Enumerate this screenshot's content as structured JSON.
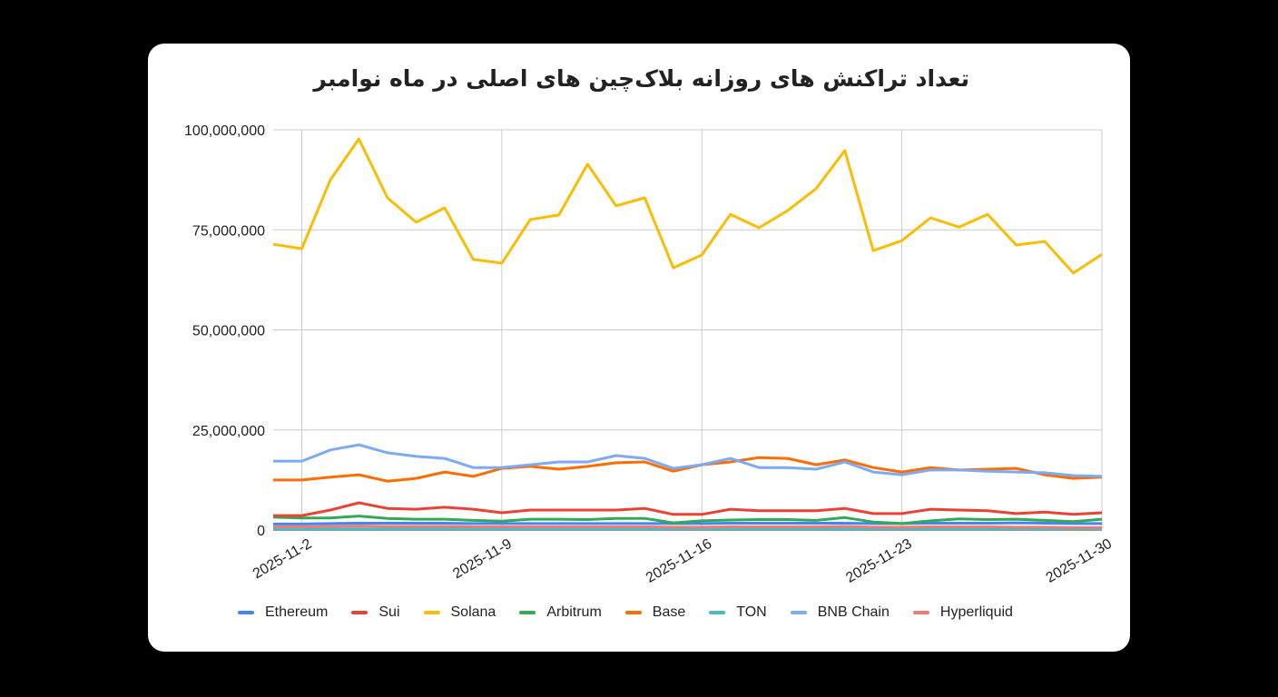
{
  "chart_data": {
    "type": "line",
    "title": "تعداد تراکنش های روزانه بلاک‌چین های اصلی در ماه نوامبر",
    "xlabel": "",
    "ylabel": "",
    "x": [
      "2025-11-1",
      "2025-11-2",
      "2025-11-3",
      "2025-11-4",
      "2025-11-5",
      "2025-11-6",
      "2025-11-7",
      "2025-11-8",
      "2025-11-9",
      "2025-11-10",
      "2025-11-11",
      "2025-11-12",
      "2025-11-13",
      "2025-11-14",
      "2025-11-15",
      "2025-11-16",
      "2025-11-17",
      "2025-11-18",
      "2025-11-19",
      "2025-11-20",
      "2025-11-21",
      "2025-11-22",
      "2025-11-23",
      "2025-11-24",
      "2025-11-25",
      "2025-11-26",
      "2025-11-27",
      "2025-11-28",
      "2025-11-29",
      "2025-11-30"
    ],
    "x_tick_labels": [
      "2025-11-2",
      "2025-11-9",
      "2025-11-16",
      "2025-11-23",
      "2025-11-30"
    ],
    "y_tick_labels": [
      "0",
      "25,000,000",
      "50,000,000",
      "75,000,000",
      "100,000,000"
    ],
    "ylim": [
      0,
      100000000
    ],
    "grid": true,
    "legend_position": "bottom",
    "series": [
      {
        "name": "Ethereum",
        "color": "#4285f4",
        "values": [
          1.5,
          1.5,
          1.6,
          1.7,
          1.7,
          1.7,
          1.7,
          1.6,
          1.6,
          1.6,
          1.6,
          1.6,
          1.6,
          1.6,
          1.6,
          1.6,
          1.7,
          1.7,
          1.7,
          1.7,
          1.7,
          1.6,
          1.6,
          1.7,
          1.7,
          1.7,
          1.8,
          1.7,
          1.6,
          1.6
        ]
      },
      {
        "name": "Sui",
        "color": "#ea4335",
        "values": [
          3.6,
          3.6,
          5.0,
          6.8,
          5.4,
          5.2,
          5.7,
          5.2,
          4.3,
          5.0,
          5.0,
          5.0,
          5.0,
          5.4,
          3.9,
          3.9,
          5.2,
          4.8,
          4.8,
          4.8,
          5.4,
          4.1,
          4.1,
          5.2,
          5.0,
          4.8,
          4.1,
          4.5,
          3.9,
          4.3
        ]
      },
      {
        "name": "Solana",
        "color": "#fbbc04",
        "values": [
          71.4,
          70.3,
          87.5,
          97.7,
          83.0,
          76.9,
          80.5,
          67.6,
          66.7,
          77.6,
          78.7,
          91.4,
          81.0,
          83.0,
          65.5,
          68.7,
          78.9,
          75.5,
          79.8,
          85.3,
          94.8,
          69.8,
          72.3,
          78.0,
          75.7,
          78.9,
          71.2,
          72.1,
          64.2,
          68.9
        ]
      },
      {
        "name": "Arbitrum",
        "color": "#34a853",
        "values": [
          3.2,
          3.0,
          3.0,
          3.5,
          2.9,
          2.7,
          2.7,
          2.4,
          2.2,
          2.7,
          2.7,
          2.6,
          2.9,
          2.9,
          1.8,
          2.3,
          2.5,
          2.6,
          2.6,
          2.4,
          3.1,
          2.0,
          1.6,
          2.3,
          2.8,
          2.6,
          2.7,
          2.4,
          2.1,
          2.7
        ]
      },
      {
        "name": "Base",
        "color": "#ff6d01",
        "values": [
          12.5,
          12.5,
          13.2,
          13.8,
          12.2,
          12.9,
          14.5,
          13.4,
          15.4,
          15.9,
          15.2,
          15.9,
          16.8,
          17.0,
          14.7,
          16.3,
          17.0,
          18.1,
          17.9,
          16.3,
          17.5,
          15.6,
          14.5,
          15.6,
          15.0,
          15.2,
          15.4,
          13.8,
          12.9,
          13.2
        ]
      },
      {
        "name": "TON",
        "color": "#46bdc6",
        "values": [
          0.3,
          0.3,
          0.3,
          0.3,
          0.3,
          0.3,
          0.3,
          0.3,
          0.3,
          0.3,
          0.3,
          0.3,
          0.3,
          0.3,
          0.3,
          0.3,
          0.3,
          0.3,
          0.3,
          0.3,
          0.3,
          0.3,
          0.3,
          0.3,
          0.3,
          0.3,
          0.3,
          0.3,
          0.3,
          0.3
        ]
      },
      {
        "name": "BNB Chain",
        "color": "#7baaf7",
        "values": [
          17.2,
          17.2,
          20.0,
          21.3,
          19.3,
          18.4,
          17.9,
          15.6,
          15.6,
          16.3,
          17.0,
          17.0,
          18.6,
          17.9,
          15.4,
          16.3,
          17.9,
          15.6,
          15.6,
          15.2,
          17.0,
          14.5,
          13.8,
          15.0,
          15.0,
          14.7,
          14.5,
          14.3,
          13.6,
          13.4
        ]
      },
      {
        "name": "Hyperliquid",
        "color": "#f07b72",
        "values": [
          0.8,
          0.8,
          0.9,
          1.0,
          0.9,
          0.9,
          0.9,
          0.8,
          0.8,
          0.8,
          0.8,
          0.8,
          0.8,
          0.8,
          0.7,
          0.7,
          0.8,
          0.8,
          0.8,
          0.8,
          0.9,
          0.7,
          0.7,
          0.8,
          0.8,
          0.8,
          0.7,
          0.7,
          0.6,
          0.6
        ]
      }
    ],
    "value_unit_multiplier": 1000000
  }
}
